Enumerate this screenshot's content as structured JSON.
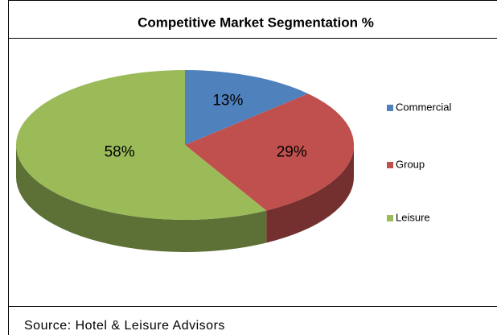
{
  "chart_data": {
    "type": "pie",
    "title": "Competitive Market Segmentation %",
    "categories": [
      "Commercial",
      "Group",
      "Leisure"
    ],
    "values": [
      13,
      29,
      58
    ],
    "value_labels": [
      "13%",
      "29%",
      "58%"
    ],
    "colors": [
      "#4f81bd",
      "#c0504d",
      "#9bbb59"
    ],
    "legend": "right",
    "source": "Source: Hotel & Leisure Advisors"
  }
}
